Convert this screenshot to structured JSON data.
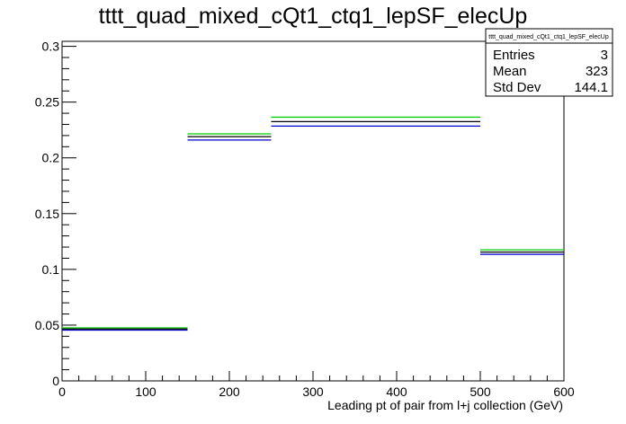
{
  "chart_data": {
    "type": "histogram",
    "title": "tttt_quad_mixed_cQt1_ctq1_lepSF_elecUp",
    "xlabel": "Leading pt of pair from l+j collection (GeV)",
    "ylabel": "",
    "xlim": [
      0,
      600
    ],
    "ylim": [
      0,
      0.3045
    ],
    "x_ticks": [
      0,
      100,
      200,
      300,
      400,
      500,
      600
    ],
    "x_tick_labels": [
      "0",
      "100",
      "200",
      "300",
      "400",
      "500",
      "600"
    ],
    "y_ticks": [
      0,
      0.05,
      0.1,
      0.15,
      0.2,
      0.25,
      0.3
    ],
    "y_tick_labels": [
      "0",
      "0.05",
      "0.1",
      "0.15",
      "0.2",
      "0.25",
      "0.3"
    ],
    "bins": [
      [
        0,
        150
      ],
      [
        150,
        250
      ],
      [
        250,
        500
      ],
      [
        500,
        600
      ]
    ],
    "series": [
      {
        "name": "",
        "color": "#00cc00",
        "values": [
          0.0475,
          0.2215,
          0.2365,
          0.1175
        ]
      },
      {
        "name": "",
        "color": "#000000",
        "values": [
          0.0465,
          0.219,
          0.2325,
          0.1155
        ]
      },
      {
        "name": "",
        "color": "#0000cc",
        "values": [
          0.0455,
          0.216,
          0.2285,
          0.1135
        ]
      }
    ],
    "stats_box": {
      "title": "tttt_quad_mixed_cQt1_ctq1_lepSF_elecUp",
      "rows": [
        {
          "label": "Entries",
          "value": "3"
        },
        {
          "label": "Mean",
          "value": "323"
        },
        {
          "label": "Std Dev",
          "value": "144.1"
        }
      ],
      "placement": "top-right"
    }
  }
}
